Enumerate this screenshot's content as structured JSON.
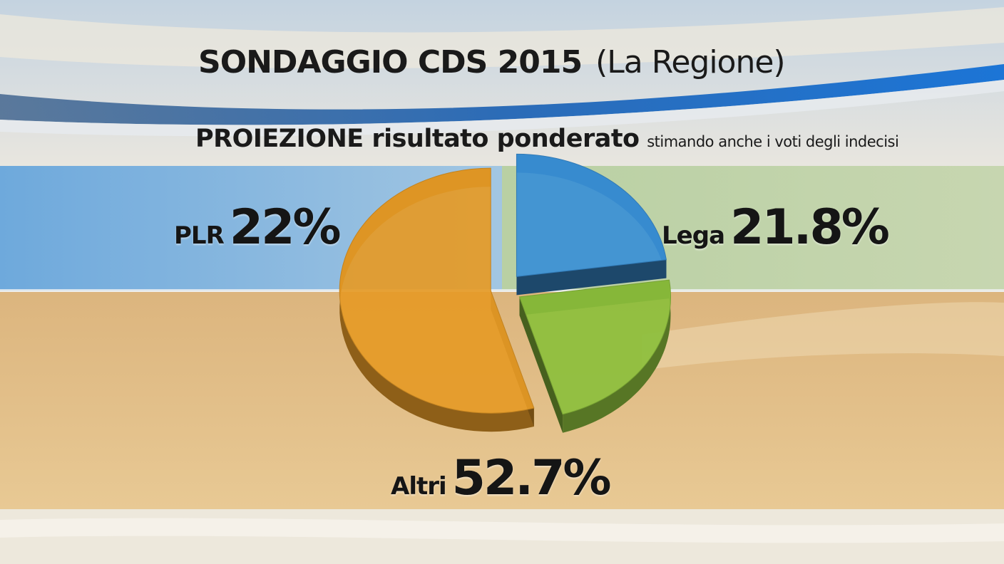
{
  "header": {
    "title_main": "SONDAGGIO CDS 2015",
    "title_source": "(La Regione)",
    "subtitle_main": "PROIEZIONE risultato ponderato",
    "subtitle_note": "stimando anche i voti degli indecisi"
  },
  "chart_data": {
    "type": "pie",
    "title": "SONDAGGIO CDS 2015 (La Regione)",
    "subtitle": "PROIEZIONE risultato ponderato stimando anche i voti degli indecisi",
    "unit": "%",
    "slices": [
      {
        "label": "PLR",
        "value": 22,
        "value_label": "22%",
        "color": "#3a8fd6"
      },
      {
        "label": "Lega",
        "value": 21.8,
        "value_label": "21.8%",
        "color": "#8cbf3c"
      },
      {
        "label": "Altri",
        "value": 52.7,
        "value_label": "52.7%",
        "color": "#e59a26"
      }
    ],
    "legend": "none",
    "style": "3d-exploded"
  },
  "colors": {
    "band_plr": "#7fb4dd",
    "band_lega": "#bfd4a6",
    "band_altri": "#e6c38c",
    "accent_stripe": "#1a6ec7"
  }
}
